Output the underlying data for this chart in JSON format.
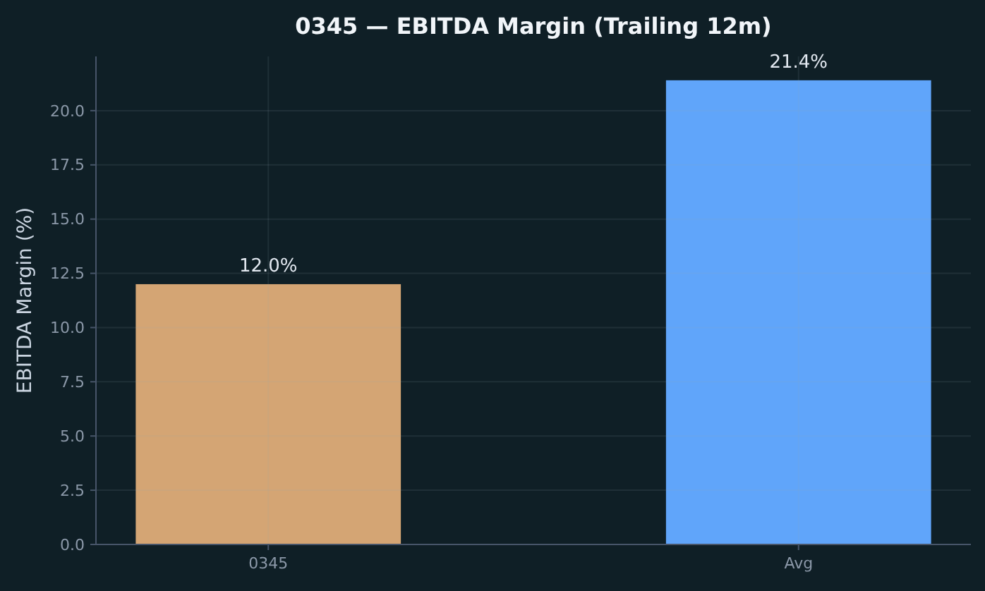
{
  "chart_data": {
    "type": "bar",
    "title": "0345 — EBITDA Margin (Trailing 12m)",
    "ylabel": "EBITDA Margin (%)",
    "categories": [
      "0345",
      "Avg"
    ],
    "values": [
      12.0,
      21.4
    ],
    "colors": [
      "#d4a574",
      "#60a5fa"
    ],
    "value_labels": [
      "12.0%",
      "21.4%"
    ],
    "ylim": [
      0,
      22.5
    ],
    "yticks": [
      {
        "value": 0,
        "label": "0.0"
      },
      {
        "value": 2.5,
        "label": "2.5"
      },
      {
        "value": 5,
        "label": "5.0"
      },
      {
        "value": 7.5,
        "label": "7.5"
      },
      {
        "value": 10,
        "label": "10.0"
      },
      {
        "value": 12.5,
        "label": "12.5"
      },
      {
        "value": 15,
        "label": "15.0"
      },
      {
        "value": 17.5,
        "label": "17.5"
      },
      {
        "value": 20,
        "label": "20.0"
      }
    ],
    "grid": true
  }
}
